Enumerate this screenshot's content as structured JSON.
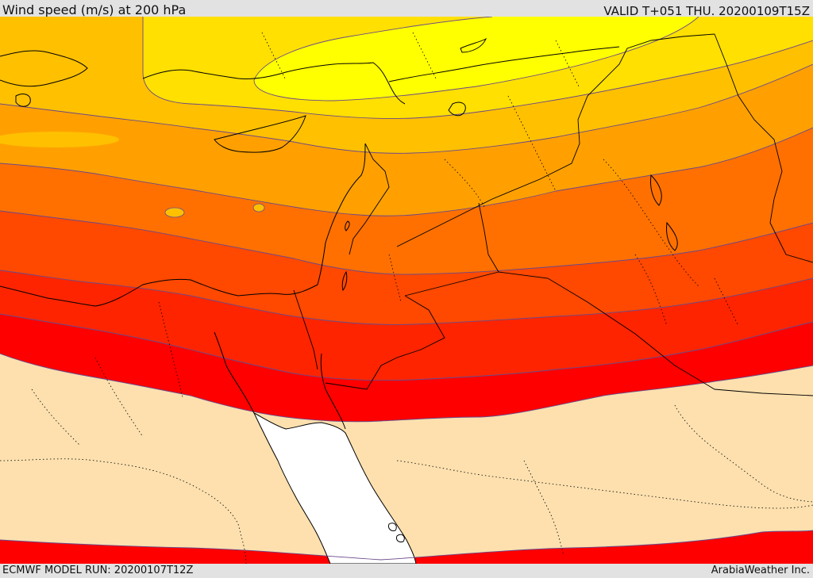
{
  "header": {
    "title": "Wind speed (m/s) at 200 hPa",
    "valid": "VALID T+051 THU. 20200109T15Z"
  },
  "footer": {
    "model_run": "ECMWF MODEL RUN: 20200107T12Z",
    "credit": "ArabiaWeather Inc."
  },
  "colors": {
    "background": "#e2e2e2",
    "land_low": "#fde0ae",
    "sea_white": "#ffffff",
    "band_yellow": "#ffff00",
    "band_gold": "#ffe000",
    "band_amber": "#ffc000",
    "band_orange": "#ffa000",
    "band_dark_orange": "#ff7000",
    "band_orange_red": "#ff4800",
    "band_red_orange": "#ff2400",
    "band_red": "#ff0000",
    "contour": "#6a4a8a",
    "border": "#000000"
  },
  "legend_visible": false
}
